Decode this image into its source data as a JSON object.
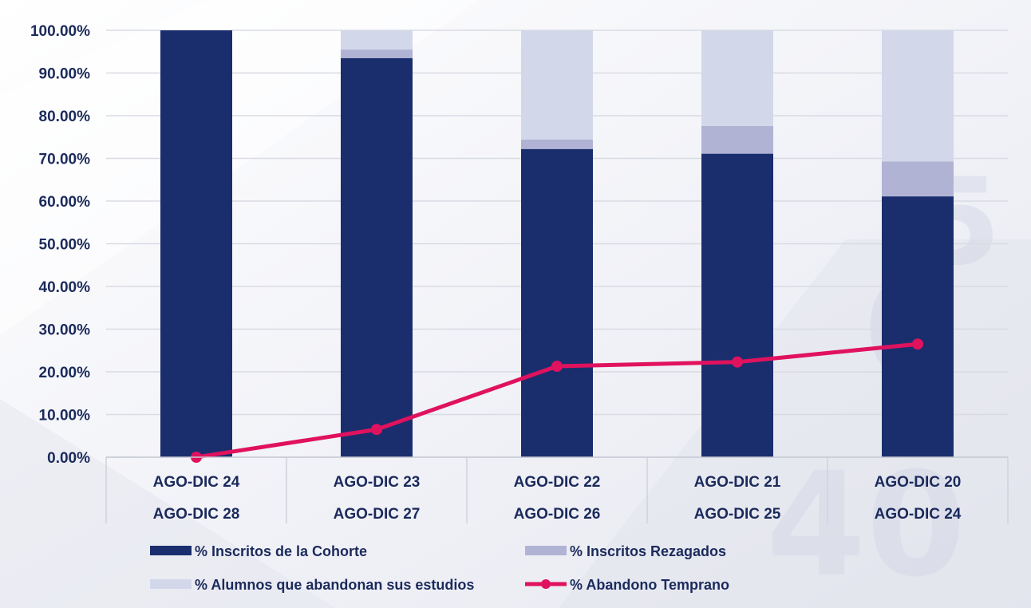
{
  "chart_data": {
    "type": "bar",
    "stacked": true,
    "categories": [
      [
        "AGO-DIC 24",
        "AGO-DIC 28"
      ],
      [
        "AGO-DIC 23",
        "AGO-DIC 27"
      ],
      [
        "AGO-DIC 22",
        "AGO-DIC 26"
      ],
      [
        "AGO-DIC 21",
        "AGO-DIC 25"
      ],
      [
        "AGO-DIC 20",
        "AGO-DIC 24"
      ]
    ],
    "series": [
      {
        "name": "% Inscritos de la Cohorte",
        "kind": "bar",
        "color": "#1a2e6e",
        "values": [
          100.0,
          93.5,
          72.2,
          71.1,
          61.1
        ]
      },
      {
        "name": "% Inscritos Rezagados",
        "kind": "bar",
        "color": "#b0b3d4",
        "values": [
          0.0,
          2.0,
          2.2,
          6.5,
          8.2
        ]
      },
      {
        "name": "% Alumnos que abandonan sus estudios",
        "kind": "bar",
        "color": "#d2d8ea",
        "values": [
          0.0,
          4.5,
          25.6,
          22.4,
          30.7
        ]
      },
      {
        "name": "% Abandono Temprano",
        "kind": "line",
        "color": "#e0125e",
        "values": [
          0.0,
          6.5,
          21.3,
          22.3,
          26.5
        ]
      }
    ],
    "y_ticks": [
      "0.00%",
      "10.00%",
      "20.00%",
      "30.00%",
      "40.00%",
      "50.00%",
      "60.00%",
      "70.00%",
      "80.00%",
      "90.00%",
      "100.00%"
    ],
    "ylim": [
      0,
      100
    ],
    "grid": true,
    "legend_position": "bottom",
    "title": "",
    "xlabel": "",
    "ylabel": ""
  }
}
